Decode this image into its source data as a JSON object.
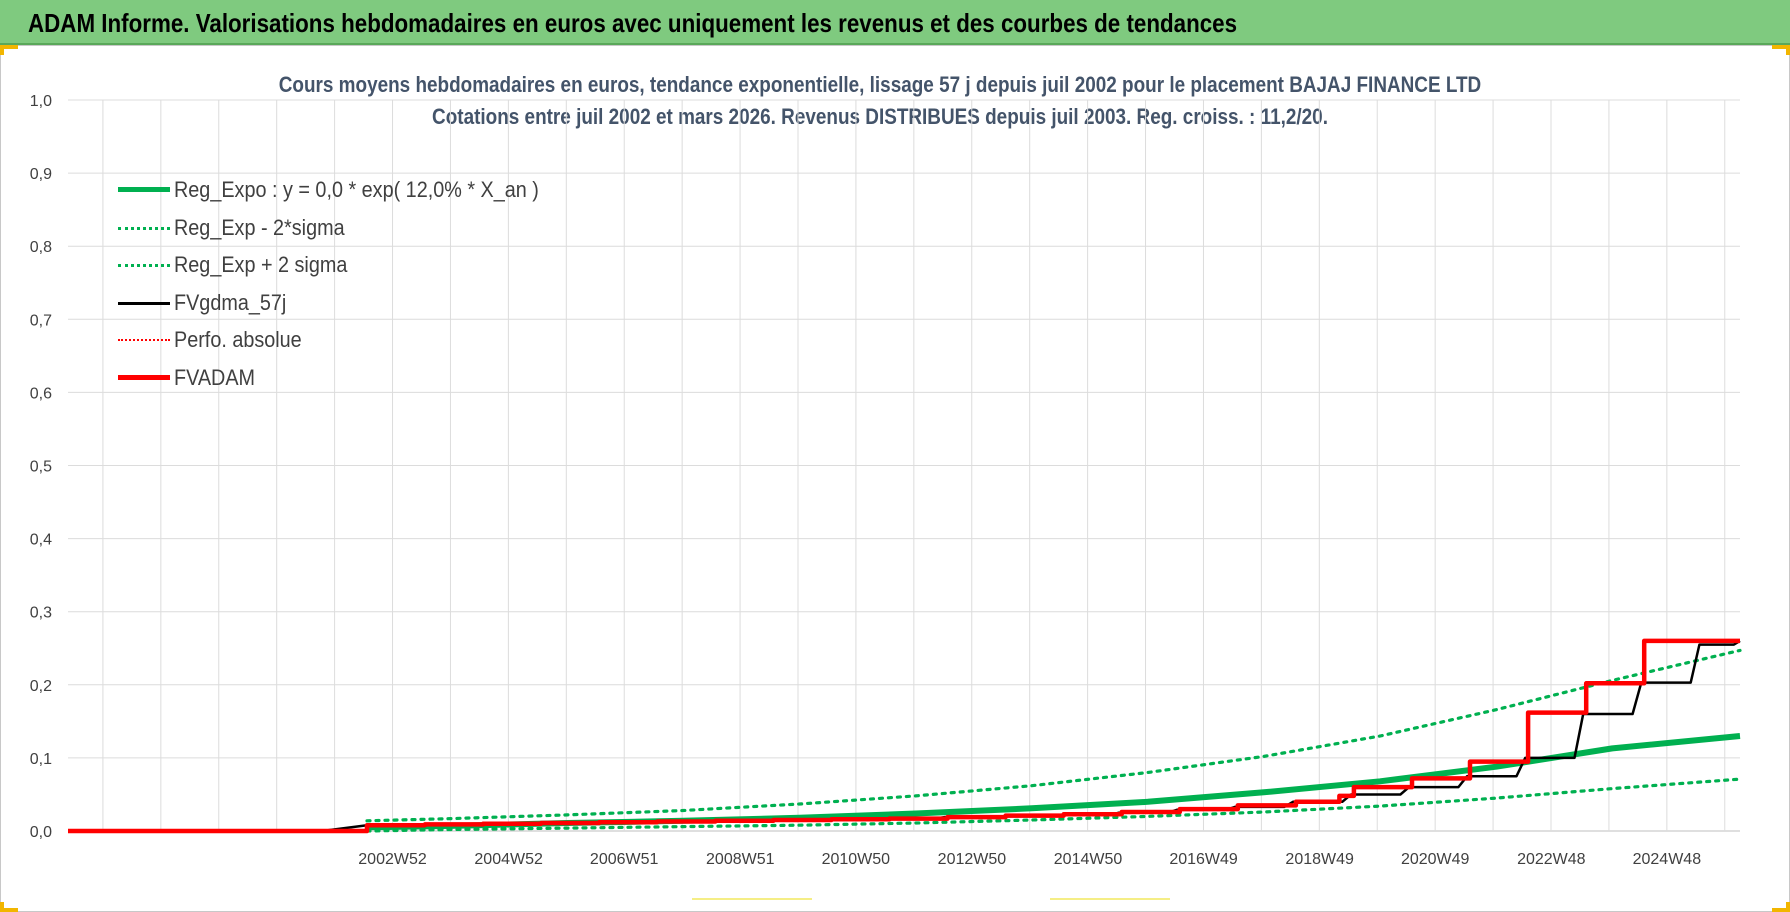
{
  "header": {
    "title": "ADAM Informe. Valorisations hebdomadaires en euros avec uniquement les revenus et des courbes de tendances"
  },
  "chart_data": {
    "type": "line",
    "title": "Cours moyens hebdomadaires en euros, tendance exponentielle, lissage 57 j depuis juil 2002 pour le placement BAJAJ FINANCE LTD",
    "subtitle": "Cotations entre juil 2002 et mars 2026. Revenus DISTRIBUES depuis juil 2003. Reg. croiss. : 11,2/20.",
    "xlabel": "",
    "ylabel": "",
    "ylim": [
      0,
      1.0
    ],
    "yticks": [
      "0,0",
      "0,1",
      "0,2",
      "0,3",
      "0,4",
      "0,5",
      "0,6",
      "0,7",
      "0,8",
      "0,9",
      "1,0"
    ],
    "xlim": [
      1997.4,
      2026.2
    ],
    "xticks": [
      {
        "label": "2002W52",
        "x": 2002.99
      },
      {
        "label": "2004W52",
        "x": 2004.99
      },
      {
        "label": "2006W51",
        "x": 2006.98
      },
      {
        "label": "2008W51",
        "x": 2008.98
      },
      {
        "label": "2010W50",
        "x": 2010.97
      },
      {
        "label": "2012W50",
        "x": 2012.97
      },
      {
        "label": "2014W50",
        "x": 2014.97
      },
      {
        "label": "2016W49",
        "x": 2016.96
      },
      {
        "label": "2018W49",
        "x": 2018.96
      },
      {
        "label": "2020W49",
        "x": 2020.95
      },
      {
        "label": "2022W48",
        "x": 2022.95
      },
      {
        "label": "2024W48",
        "x": 2024.94
      }
    ],
    "grid": true,
    "legend_position": "top-left",
    "series": [
      {
        "name": "Reg_Expo : y = 0,0 * exp( 12,0% *  X_an )",
        "color": "#00b050",
        "style": "solid-thick",
        "x": [
          2002.55,
          2004,
          2006,
          2008,
          2010,
          2012,
          2014,
          2016,
          2018,
          2020,
          2022,
          2024,
          2026.2
        ],
        "y": [
          0.005,
          0.007,
          0.011,
          0.014,
          0.018,
          0.024,
          0.031,
          0.04,
          0.053,
          0.068,
          0.088,
          0.113,
          0.13
        ]
      },
      {
        "name": "Reg_Exp - 2*sigma",
        "color": "#00b050",
        "style": "dotted",
        "x": [
          2002.55,
          2004,
          2006,
          2008,
          2010,
          2012,
          2014,
          2016,
          2018,
          2020,
          2022,
          2024,
          2026.2
        ],
        "y": [
          0.0,
          0.002,
          0.004,
          0.006,
          0.008,
          0.011,
          0.015,
          0.02,
          0.026,
          0.034,
          0.045,
          0.058,
          0.071
        ]
      },
      {
        "name": "Reg_Exp + 2 sigma",
        "color": "#00b050",
        "style": "dotted",
        "x": [
          2002.55,
          2004,
          2006,
          2008,
          2010,
          2012,
          2014,
          2016,
          2018,
          2020,
          2022,
          2024,
          2026.2
        ],
        "y": [
          0.014,
          0.017,
          0.022,
          0.028,
          0.037,
          0.048,
          0.062,
          0.08,
          0.102,
          0.13,
          0.166,
          0.206,
          0.247
        ]
      },
      {
        "name": "FVgdma_57j",
        "color": "#000000",
        "style": "solid",
        "x": [
          1997.4,
          2002.55,
          2003.5,
          2004.5,
          2005.5,
          2006.5,
          2007.5,
          2008.5,
          2009.5,
          2010.5,
          2011.5,
          2012.5,
          2013.5,
          2014.5,
          2015.5,
          2016.5,
          2017.5,
          2018.5,
          2019.5,
          2020.5,
          2021.5,
          2022.5,
          2023.5,
          2024.5,
          2025.5,
          2026.2
        ],
        "y": [
          0.0,
          0.008,
          0.009,
          0.01,
          0.011,
          0.012,
          0.013,
          0.014,
          0.015,
          0.016,
          0.017,
          0.019,
          0.02,
          0.022,
          0.025,
          0.029,
          0.033,
          0.04,
          0.05,
          0.06,
          0.075,
          0.1,
          0.16,
          0.203,
          0.255,
          0.26
        ]
      },
      {
        "name": "Perfo. absolue",
        "color": "#ff0000",
        "style": "dotted",
        "x": [],
        "y": []
      },
      {
        "name": "FVADAM",
        "color": "#ff0000",
        "style": "step-thick",
        "x": [
          1997.4,
          2002.55,
          2003.55,
          2004.55,
          2005.55,
          2006.55,
          2007.55,
          2008.55,
          2009.55,
          2010.55,
          2011.55,
          2012.55,
          2013.55,
          2014.55,
          2015.55,
          2016.55,
          2017.55,
          2018.55,
          2019.3,
          2019.55,
          2020.55,
          2021.55,
          2022.55,
          2023.55,
          2024.55,
          2026.2
        ],
        "y": [
          0.0,
          0.008,
          0.009,
          0.01,
          0.011,
          0.012,
          0.013,
          0.014,
          0.015,
          0.016,
          0.017,
          0.019,
          0.021,
          0.023,
          0.026,
          0.03,
          0.035,
          0.04,
          0.048,
          0.06,
          0.072,
          0.095,
          0.162,
          0.202,
          0.26,
          0.26
        ]
      }
    ]
  }
}
